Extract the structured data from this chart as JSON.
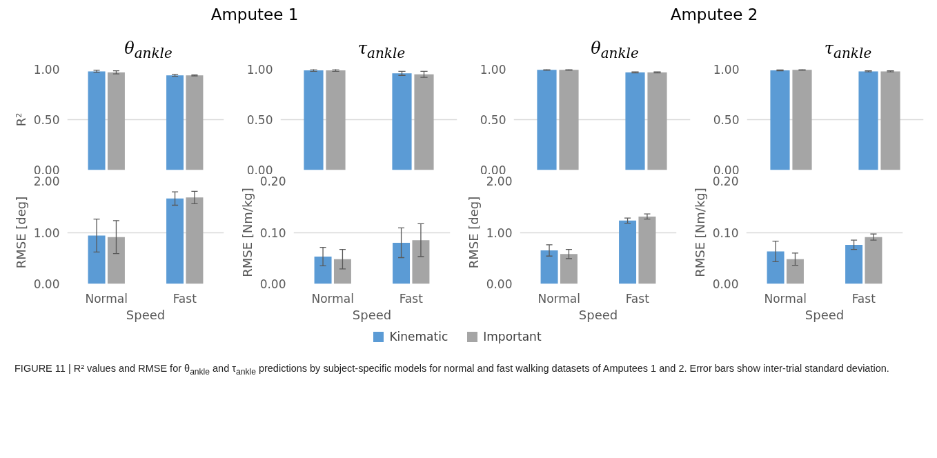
{
  "chart_data": [
    {
      "type": "bar",
      "title": "θ$_{ankle}$",
      "annotations": [
        "Amputee 1"
      ],
      "ylabel": "R²",
      "categories": [
        null,
        null
      ],
      "series": [
        {
          "color": "#5b9bd5",
          "values": [
            0.98,
            0.94
          ],
          "errors": [
            0.01,
            0.01
          ]
        },
        {
          "color": "#a5a5a5",
          "values": [
            0.97,
            0.94
          ],
          "errors": [
            0.015,
            0.005
          ]
        }
      ],
      "ylim": [
        0,
        1
      ],
      "yticks": [
        {
          "value": 0,
          "label": "0.00"
        },
        {
          "value": 0.5,
          "label": "0.50"
        },
        {
          "value": 1,
          "label": "1.00"
        }
      ],
      "grid": "y"
    },
    {
      "type": "bar",
      "title": "τ$_{ankle}$",
      "categories": [
        null,
        null
      ],
      "series": [
        {
          "color": "#5b9bd5",
          "values": [
            0.99,
            0.96
          ],
          "errors": [
            0.01,
            0.02
          ]
        },
        {
          "color": "#a5a5a5",
          "values": [
            0.99,
            0.95
          ],
          "errors": [
            0.01,
            0.03
          ]
        }
      ],
      "ylim": [
        0,
        1
      ],
      "yticks": [
        {
          "value": 0,
          "label": "0.00"
        },
        {
          "value": 0.5,
          "label": "0.50"
        },
        {
          "value": 1,
          "label": "1.00"
        }
      ],
      "grid": "y"
    },
    {
      "type": "bar",
      "title": "θ$_{ankle}$",
      "annotations": [
        "Amputee 2"
      ],
      "categories": [
        null,
        null
      ],
      "series": [
        {
          "color": "#5b9bd5",
          "values": [
            0.995,
            0.97
          ],
          "errors": [
            0.005,
            0.005
          ]
        },
        {
          "color": "#a5a5a5",
          "values": [
            0.995,
            0.97
          ],
          "errors": [
            0.005,
            0.005
          ]
        }
      ],
      "ylim": [
        0,
        1
      ],
      "yticks": [
        {
          "value": 0,
          "label": "0.00"
        },
        {
          "value": 0.5,
          "label": "0.50"
        },
        {
          "value": 1,
          "label": "1.00"
        }
      ],
      "grid": "y"
    },
    {
      "type": "bar",
      "title": "τ$_{ankle}$",
      "categories": [
        null,
        null
      ],
      "series": [
        {
          "color": "#5b9bd5",
          "values": [
            0.99,
            0.98
          ],
          "errors": [
            0.005,
            0.005
          ]
        },
        {
          "color": "#a5a5a5",
          "values": [
            0.995,
            0.98
          ],
          "errors": [
            0.005,
            0.005
          ]
        }
      ],
      "ylim": [
        0,
        1
      ],
      "yticks": [
        {
          "value": 0,
          "label": "0.00"
        },
        {
          "value": 0.5,
          "label": "0.50"
        },
        {
          "value": 1,
          "label": "1.00"
        }
      ],
      "grid": "y"
    },
    {
      "type": "bar",
      "xlabel": "Speed",
      "ylabel": "RMSE [deg]",
      "categories": [
        "Normal",
        "Fast"
      ],
      "series": [
        {
          "color": "#5b9bd5",
          "values": [
            0.94,
            1.66
          ],
          "errors": [
            0.32,
            0.13
          ]
        },
        {
          "color": "#a5a5a5",
          "values": [
            0.91,
            1.68
          ],
          "errors": [
            0.32,
            0.12
          ]
        }
      ],
      "ylim": [
        0,
        2
      ],
      "yticks": [
        {
          "value": 0,
          "label": "0.00"
        },
        {
          "value": 1,
          "label": "1.00"
        },
        {
          "value": 2,
          "label": "2.00"
        }
      ],
      "grid": "y"
    },
    {
      "type": "bar",
      "xlabel": "Speed",
      "ylabel": "RMSE [Nm/kg]",
      "categories": [
        "Normal",
        "Fast"
      ],
      "series": [
        {
          "color": "#5b9bd5",
          "values": [
            0.053,
            0.08
          ],
          "errors": [
            0.018,
            0.029
          ]
        },
        {
          "color": "#a5a5a5",
          "values": [
            0.048,
            0.085
          ],
          "errors": [
            0.019,
            0.032
          ]
        }
      ],
      "ylim": [
        0,
        0.2
      ],
      "yticks": [
        {
          "value": 0,
          "label": "0.00"
        },
        {
          "value": 0.1,
          "label": "0.10"
        },
        {
          "value": 0.2,
          "label": "0.20"
        }
      ],
      "grid": "y"
    },
    {
      "type": "bar",
      "xlabel": "Speed",
      "ylabel": "RMSE [deg]",
      "categories": [
        "Normal",
        "Fast"
      ],
      "series": [
        {
          "color": "#5b9bd5",
          "values": [
            0.65,
            1.23
          ],
          "errors": [
            0.11,
            0.05
          ]
        },
        {
          "color": "#a5a5a5",
          "values": [
            0.58,
            1.31
          ],
          "errors": [
            0.09,
            0.05
          ]
        }
      ],
      "ylim": [
        0,
        2
      ],
      "yticks": [
        {
          "value": 0,
          "label": "0.00"
        },
        {
          "value": 1,
          "label": "1.00"
        },
        {
          "value": 2,
          "label": "2.00"
        }
      ],
      "grid": "y"
    },
    {
      "type": "bar",
      "xlabel": "Speed",
      "ylabel": "RMSE [Nm/kg]",
      "categories": [
        "Normal",
        "Fast"
      ],
      "legend": "bottom",
      "annotations": [
        "FIGURE 11 | R² values and RMSE for θ$_{ankle}$ and τ$_{ankle}$ predictions by subject-specific models for normal and fast walking datasets of Amputees 1 and 2. Error bars show inter-trial standard deviation."
      ],
      "series": [
        {
          "name": "Kinematic",
          "color": "#5b9bd5",
          "values": [
            0.063,
            0.076
          ],
          "errors": [
            0.02,
            0.009
          ]
        },
        {
          "name": "Important",
          "color": "#a5a5a5",
          "values": [
            0.048,
            0.091
          ],
          "errors": [
            0.012,
            0.006
          ]
        }
      ],
      "ylim": [
        0,
        0.2
      ],
      "yticks": [
        {
          "value": 0,
          "label": "0.00"
        },
        {
          "value": 0.1,
          "label": "0.10"
        },
        {
          "value": 0.2,
          "label": "0.20"
        }
      ],
      "grid": "y"
    }
  ]
}
